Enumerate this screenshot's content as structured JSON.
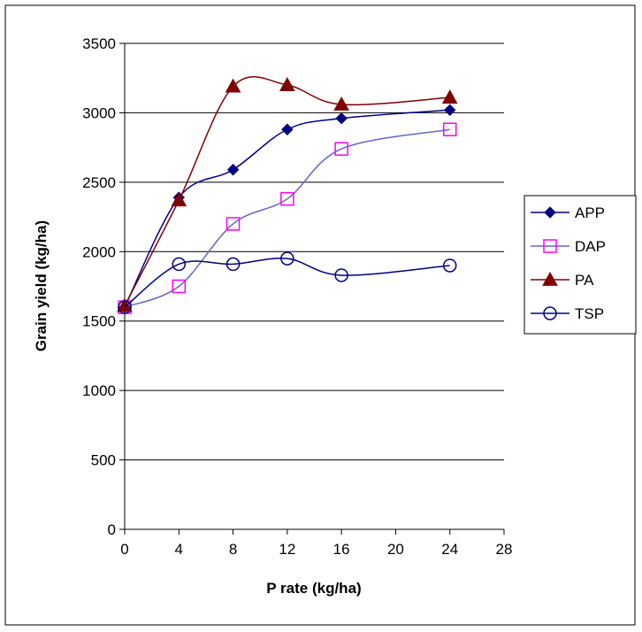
{
  "chart_data": {
    "type": "line",
    "xlabel": "P rate (kg/ha)",
    "ylabel": "Grain yield (kg/ha)",
    "xlim": [
      0,
      28
    ],
    "ylim": [
      0,
      3500
    ],
    "x_ticks": [
      "0",
      "4",
      "8",
      "12",
      "16",
      "20",
      "24",
      "28"
    ],
    "y_ticks": [
      "0",
      "500",
      "1000",
      "1500",
      "2000",
      "2500",
      "3000",
      "3500"
    ],
    "grid": "horizontal",
    "legend_position": "right",
    "series": [
      {
        "name": "APP",
        "marker": "diamond-filled",
        "color": "#000080",
        "x": [
          0,
          4,
          8,
          12,
          16,
          24
        ],
        "y": [
          1600,
          2390,
          2590,
          2880,
          2960,
          3020
        ]
      },
      {
        "name": "DAP",
        "marker": "square-open",
        "color": "#FF00FF",
        "line_color": "#6666CC",
        "x": [
          0,
          4,
          8,
          12,
          16,
          24
        ],
        "y": [
          1600,
          1750,
          2200,
          2380,
          2740,
          2880
        ]
      },
      {
        "name": "PA",
        "marker": "triangle-filled",
        "color": "#800000",
        "x": [
          0,
          4,
          8,
          12,
          16,
          24
        ],
        "y": [
          1610,
          2370,
          3190,
          3200,
          3060,
          3110
        ]
      },
      {
        "name": "TSP",
        "marker": "circle-open",
        "color": "#000080",
        "x": [
          0,
          4,
          8,
          12,
          16,
          24
        ],
        "y": [
          1600,
          1910,
          1910,
          1950,
          1830,
          1900
        ]
      }
    ]
  }
}
